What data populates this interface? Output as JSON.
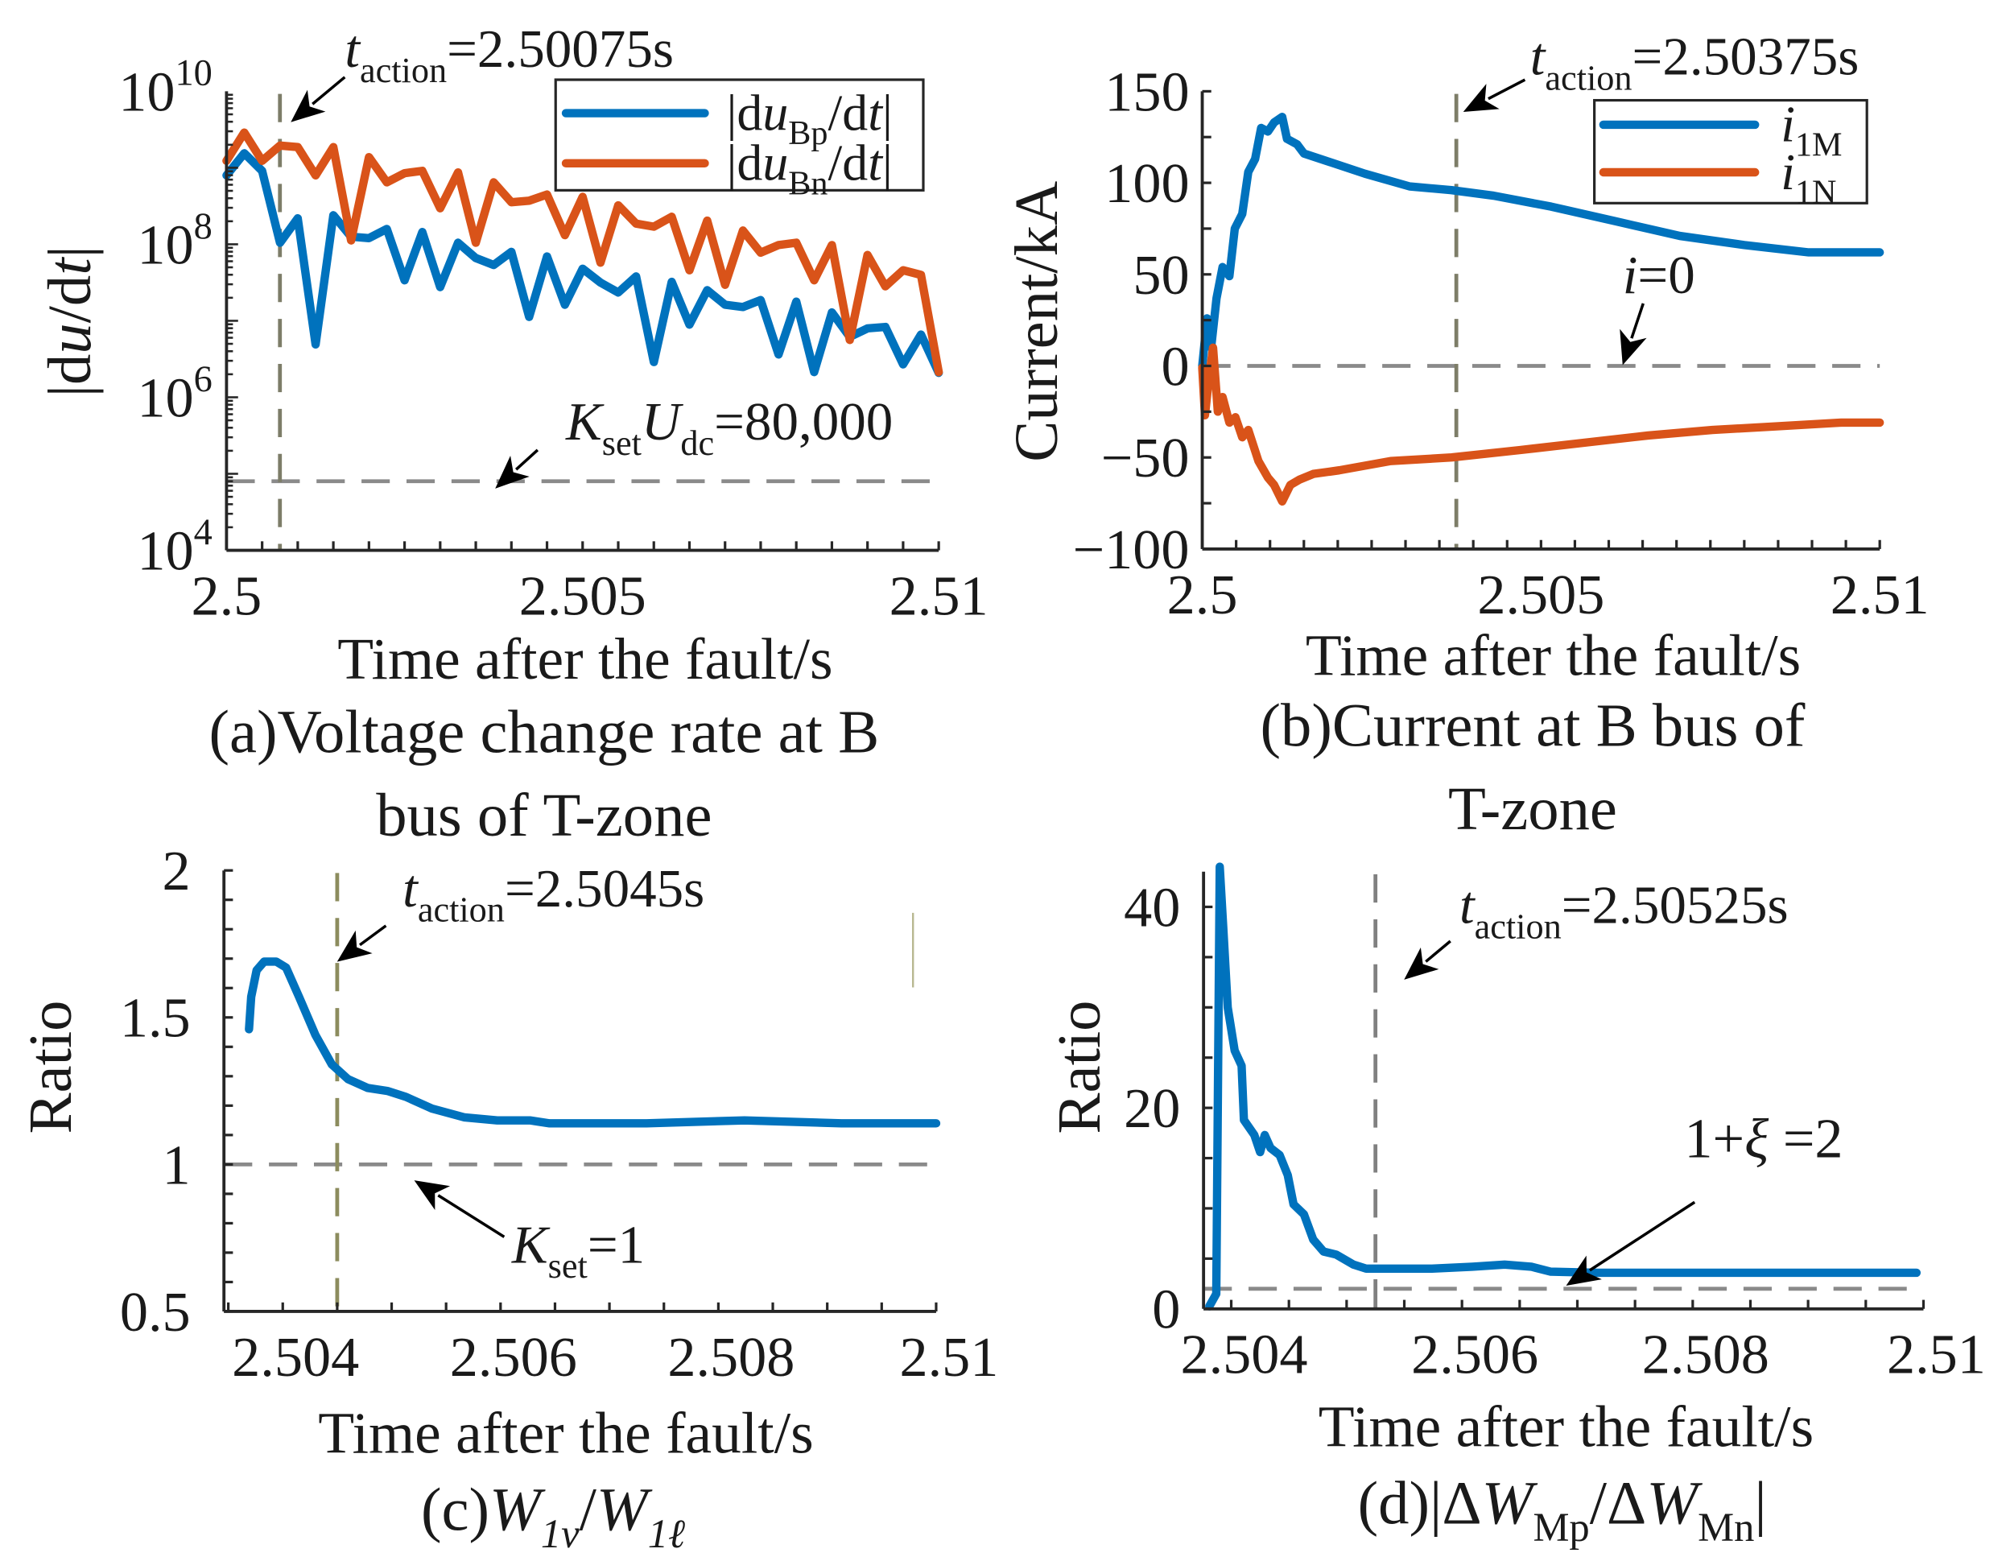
{
  "chart_data": [
    {
      "panel": "a",
      "type": "line",
      "xlim": [
        2.5,
        2.51
      ],
      "yscale": "log",
      "ylim_log10": [
        4,
        10
      ],
      "grid": false,
      "xticks": [
        {
          "value": 2.5,
          "label": "2.5"
        },
        {
          "value": 2.505,
          "label": "2.505"
        },
        {
          "value": 2.51,
          "label": "2.51"
        }
      ],
      "yticks": [
        {
          "value_log10": 4,
          "label": [
            {
              "text": "10"
            },
            {
              "text": "4",
              "style": "sup"
            }
          ]
        },
        {
          "value_log10": 6,
          "label": [
            {
              "text": "10"
            },
            {
              "text": "6",
              "style": "sup"
            }
          ]
        },
        {
          "value_log10": 8,
          "label": [
            {
              "text": "10"
            },
            {
              "text": "8",
              "style": "sup"
            }
          ]
        },
        {
          "value_log10": 10,
          "label": [
            {
              "text": "10"
            },
            {
              "text": "10",
              "style": "sup"
            }
          ]
        }
      ],
      "xlabel": [
        {
          "text": "Time after the fault/s"
        }
      ],
      "ylabel": [
        {
          "text": "|d"
        },
        {
          "text": "u",
          "style": "i"
        },
        {
          "text": "/d"
        },
        {
          "text": "t",
          "style": "i"
        },
        {
          "text": "|"
        }
      ],
      "caption": [
        [
          {
            "text": "(a)Voltage change rate at B"
          }
        ],
        [
          {
            "text": "bus of T-zone"
          }
        ]
      ],
      "legend": {
        "placement": "top-right",
        "entries": [
          {
            "series": 0,
            "label": [
              {
                "text": "|d"
              },
              {
                "text": "u",
                "style": "i"
              },
              {
                "text": "Bp",
                "style": "sub"
              },
              {
                "text": "/d"
              },
              {
                "text": "t",
                "style": "i"
              },
              {
                "text": "|"
              }
            ]
          },
          {
            "series": 1,
            "label": [
              {
                "text": "|d"
              },
              {
                "text": "u",
                "style": "i"
              },
              {
                "text": "Bn",
                "style": "sub"
              },
              {
                "text": "/d"
              },
              {
                "text": "t",
                "style": "i"
              },
              {
                "text": "|"
              }
            ]
          }
        ]
      },
      "series": [
        {
          "color": "#0072BD",
          "x_start": 2.5,
          "x_step": 0.00025,
          "y_log10": [
            8.9,
            9.19,
            8.96,
            8.02,
            8.34,
            6.69,
            8.38,
            8.1,
            8.08,
            8.2,
            7.53,
            8.16,
            7.44,
            8.02,
            7.82,
            7.73,
            7.9,
            7.05,
            7.84,
            7.21,
            7.68,
            7.5,
            7.37,
            7.58,
            6.46,
            7.51,
            6.95,
            7.4,
            7.21,
            7.18,
            7.27,
            6.56,
            7.25,
            6.33,
            7.11,
            6.79,
            6.9,
            6.92,
            6.43,
            6.82,
            6.32
          ]
        },
        {
          "color": "#D95319",
          "x_start": 2.5,
          "x_step": 0.00025,
          "y_log10": [
            9.09,
            9.46,
            9.09,
            9.29,
            9.27,
            8.9,
            9.27,
            8.05,
            9.14,
            8.81,
            8.93,
            8.96,
            8.47,
            8.94,
            8.02,
            8.81,
            8.55,
            8.57,
            8.65,
            8.12,
            8.62,
            7.76,
            8.51,
            8.27,
            8.23,
            8.36,
            7.66,
            8.31,
            7.47,
            8.18,
            7.89,
            7.99,
            8.02,
            7.53,
            7.99,
            6.75,
            7.86,
            7.45,
            7.66,
            7.6,
            6.33
          ]
        }
      ],
      "vline": {
        "x": 2.50075
      },
      "hline": {
        "y": 80000
      },
      "annotations": [
        {
          "label": [
            {
              "text": "t",
              "style": "i"
            },
            {
              "text": "action",
              "style": "sub"
            },
            {
              "text": "=2.50075s"
            }
          ]
        },
        {
          "label": [
            {
              "text": "K",
              "style": "i"
            },
            {
              "text": "set",
              "style": "sub"
            },
            {
              "text": "U",
              "style": "i"
            },
            {
              "text": "dc",
              "style": "sub"
            },
            {
              "text": "=80,000"
            }
          ]
        }
      ]
    },
    {
      "panel": "b",
      "type": "line",
      "xlim": [
        2.5,
        2.51
      ],
      "ylim": [
        -100,
        150
      ],
      "grid": false,
      "xticks": [
        {
          "value": 2.5,
          "label": "2.5"
        },
        {
          "value": 2.505,
          "label": "2.505"
        },
        {
          "value": 2.51,
          "label": "2.51"
        }
      ],
      "yticks": [
        {
          "value": -100,
          "label": [
            {
              "text": "−100"
            }
          ]
        },
        {
          "value": -50,
          "label": [
            {
              "text": "−50"
            }
          ]
        },
        {
          "value": 0,
          "label": [
            {
              "text": "0"
            }
          ]
        },
        {
          "value": 50,
          "label": [
            {
              "text": "50"
            }
          ]
        },
        {
          "value": 100,
          "label": [
            {
              "text": "100"
            }
          ]
        },
        {
          "value": 150,
          "label": [
            {
              "text": "150"
            }
          ]
        }
      ],
      "xlabel": [
        {
          "text": "Time after the fault/s"
        }
      ],
      "ylabel": [
        {
          "text": "Current/kA"
        }
      ],
      "caption": [
        [
          {
            "text": "(b)Current at B bus of"
          }
        ],
        [
          {
            "text": "T-zone"
          }
        ]
      ],
      "legend": {
        "placement": "top-right",
        "entries": [
          {
            "series": 0,
            "label": [
              {
                "text": "i",
                "style": "i"
              },
              {
                "text": "1M",
                "style": "sub"
              }
            ]
          },
          {
            "series": 1,
            "label": [
              {
                "text": "i",
                "style": "i"
              },
              {
                "text": "1N",
                "style": "sub"
              }
            ]
          }
        ]
      },
      "series": [
        {
          "color": "#0072BD",
          "x": [
            2.5,
            2.50007,
            2.50013,
            2.50021,
            2.5003,
            2.5004,
            2.50048,
            2.50059,
            2.50068,
            2.50078,
            2.50087,
            2.50097,
            2.50106,
            2.50118,
            2.50125,
            2.5014,
            2.5015,
            2.50183,
            2.5024,
            2.50306,
            2.50368,
            2.5043,
            2.50515,
            2.5061,
            2.50705,
            2.508,
            2.50895,
            2.50943,
            2.51
          ],
          "y": [
            0,
            26,
            10,
            37,
            54,
            49,
            75,
            83,
            106,
            113,
            130,
            128,
            133,
            136,
            124,
            121,
            116,
            112,
            105,
            98,
            96,
            93,
            87,
            79,
            71,
            66,
            62,
            62,
            62
          ]
        },
        {
          "color": "#D95319",
          "x": [
            2.5,
            2.50004,
            2.5001,
            2.50016,
            2.50023,
            2.5003,
            2.5004,
            2.50049,
            2.50059,
            2.50068,
            2.50083,
            2.50097,
            2.50106,
            2.50118,
            2.5013,
            2.50144,
            2.50164,
            2.50202,
            2.50278,
            2.50368,
            2.50468,
            2.50563,
            2.50658,
            2.50753,
            2.50848,
            2.50943,
            2.51
          ],
          "y": [
            -1,
            -27,
            -6,
            10,
            -25,
            -17,
            -31,
            -28,
            -39,
            -35,
            -52,
            -61,
            -65,
            -74,
            -65,
            -62,
            -59,
            -57,
            -52,
            -50,
            -46,
            -42,
            -38,
            -35,
            -33,
            -31,
            -31
          ]
        }
      ],
      "vline": {
        "x": 2.50375
      },
      "hline": {
        "y": 0
      },
      "annotations": [
        {
          "label": [
            {
              "text": "t",
              "style": "i"
            },
            {
              "text": "action",
              "style": "sub"
            },
            {
              "text": "=2.50375s"
            }
          ]
        },
        {
          "label": [
            {
              "text": "i",
              "style": "i"
            },
            {
              "text": "=0"
            }
          ]
        }
      ]
    },
    {
      "panel": "c",
      "type": "line",
      "xlim": [
        2.50346,
        2.51
      ],
      "ylim": [
        0.5,
        2
      ],
      "grid": false,
      "xticks": [
        {
          "value": 2.504,
          "label": "2.504"
        },
        {
          "value": 2.506,
          "label": "2.506"
        },
        {
          "value": 2.508,
          "label": "2.508"
        },
        {
          "value": 2.51,
          "label": "2.51"
        }
      ],
      "yticks": [
        {
          "value": 0.5,
          "label": [
            {
              "text": "0.5"
            }
          ]
        },
        {
          "value": 1,
          "label": [
            {
              "text": "1"
            }
          ]
        },
        {
          "value": 1.5,
          "label": [
            {
              "text": "1.5"
            }
          ]
        },
        {
          "value": 2,
          "label": [
            {
              "text": "2"
            }
          ]
        }
      ],
      "xlabel": [
        {
          "text": "Time after the fault/s"
        }
      ],
      "ylabel": [
        {
          "text": "Ratio"
        }
      ],
      "caption": [
        [
          {
            "text": "(c)"
          },
          {
            "text": "W",
            "style": "i"
          },
          {
            "text": "1v",
            "style": "subi"
          },
          {
            "text": "/"
          },
          {
            "text": "W",
            "style": "i"
          },
          {
            "text": "1ℓ",
            "style": "subi"
          }
        ]
      ],
      "series": [
        {
          "color": "#0072BD",
          "x": [
            2.50369,
            2.50371,
            2.50376,
            2.50383,
            2.50394,
            2.50403,
            2.50415,
            2.5043,
            2.50445,
            2.5046,
            2.50478,
            2.50496,
            2.50513,
            2.50537,
            2.50567,
            2.50597,
            2.50627,
            2.50645,
            2.50734,
            2.50824,
            2.50913,
            2.51
          ],
          "y": [
            1.46,
            1.57,
            1.66,
            1.69,
            1.69,
            1.67,
            1.57,
            1.44,
            1.34,
            1.29,
            1.26,
            1.25,
            1.23,
            1.19,
            1.16,
            1.15,
            1.15,
            1.14,
            1.14,
            1.15,
            1.14,
            1.14
          ]
        }
      ],
      "vline": {
        "x": 2.5045
      },
      "hline": {
        "y": 1
      },
      "annotations": [
        {
          "label": [
            {
              "text": "t",
              "style": "i"
            },
            {
              "text": "action",
              "style": "sub"
            },
            {
              "text": "=2.5045s"
            }
          ]
        },
        {
          "label": [
            {
              "text": "K",
              "style": "i"
            },
            {
              "text": "set",
              "style": "sub"
            },
            {
              "text": "=1"
            }
          ]
        }
      ]
    },
    {
      "panel": "d",
      "type": "line",
      "xlim": [
        2.50376,
        2.51
      ],
      "ylim": [
        0,
        43.5
      ],
      "grid": false,
      "xticks": [
        {
          "value": 2.504,
          "label": "2.504"
        },
        {
          "value": 2.506,
          "label": "2.506"
        },
        {
          "value": 2.508,
          "label": "2.508"
        },
        {
          "value": 2.51,
          "label": "2.51"
        }
      ],
      "yticks": [
        {
          "value": 0,
          "label": [
            {
              "text": "0"
            }
          ]
        },
        {
          "value": 20,
          "label": [
            {
              "text": "20"
            }
          ]
        },
        {
          "value": 40,
          "label": [
            {
              "text": "40"
            }
          ]
        }
      ],
      "xlabel": [
        {
          "text": "Time after the fault/s"
        }
      ],
      "ylabel": [
        {
          "text": "Ratio"
        }
      ],
      "caption": [
        [
          {
            "text": "(d)|Δ"
          },
          {
            "text": "W",
            "style": "i"
          },
          {
            "text": "Mp",
            "style": "sub"
          },
          {
            "text": "/Δ"
          },
          {
            "text": "W",
            "style": "i"
          },
          {
            "text": "Mn",
            "style": "sub"
          },
          {
            "text": "|"
          }
        ]
      ],
      "series": [
        {
          "color": "#0072BD",
          "x": [
            2.50381,
            2.50387,
            2.5039,
            2.50393,
            2.50397,
            2.50403,
            2.50409,
            2.50411,
            2.5042,
            2.50425,
            2.50429,
            2.50434,
            2.50442,
            2.50449,
            2.50454,
            2.50463,
            2.50471,
            2.5048,
            2.50491,
            2.50506,
            2.50517,
            2.5054,
            2.50574,
            2.50609,
            2.50637,
            2.5066,
            2.50677,
            2.50717,
            2.50803,
            2.50994
          ],
          "y": [
            0.25,
            1.5,
            44,
            38,
            30,
            25.7,
            24.2,
            18.8,
            17.3,
            15.6,
            17.3,
            16,
            15.3,
            13.3,
            10.4,
            9.4,
            6.9,
            5.7,
            5.4,
            4.4,
            4.0,
            4.0,
            4.0,
            4.2,
            4.4,
            4.2,
            3.7,
            3.6,
            3.6,
            3.6
          ]
        }
      ],
      "vline": {
        "x": 2.50525
      },
      "hline": {
        "y": 2
      },
      "annotations": [
        {
          "label": [
            {
              "text": "t",
              "style": "i"
            },
            {
              "text": "action",
              "style": "sub"
            },
            {
              "text": "=2.50525s"
            }
          ]
        },
        {
          "label": [
            {
              "text": "1+"
            },
            {
              "text": "ξ",
              "style": "i"
            },
            {
              "text": " =2"
            }
          ]
        }
      ]
    }
  ]
}
